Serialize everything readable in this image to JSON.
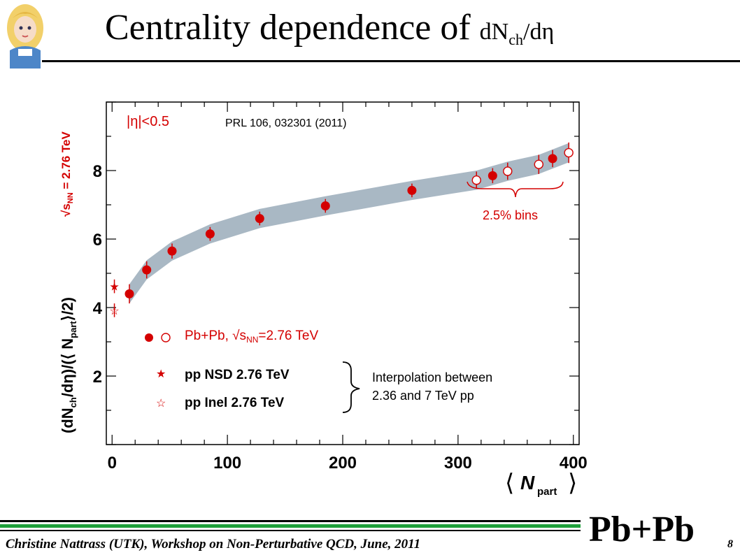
{
  "slide": {
    "title_main": "Centrality dependence of ",
    "title_math": "dN",
    "title_math_sub": "ch",
    "title_math_tail": "/dη",
    "footer": "Christine Nattrass (UTK), Workshop on Non-Perturbative QCD, June, 2011",
    "corner_label": "Pb+Pb",
    "page_number": "8"
  },
  "chart_data": {
    "type": "scatter",
    "xlim": [
      -5,
      405
    ],
    "ylim": [
      0,
      10
    ],
    "x_ticks": [
      "0",
      "100",
      "200",
      "300",
      "400"
    ],
    "y_ticks": [
      "2",
      "4",
      "6",
      "8"
    ],
    "xlabel_main": "N",
    "xlabel_sub": "part",
    "ylabel": "(dN",
    "ylabel_sub1": "ch",
    "ylabel_mid": "/dη)/(⟨ N",
    "ylabel_sub2": "part",
    "ylabel_tail": "⟩/2)",
    "energy_label": "√s",
    "energy_sub": "NN",
    "energy_tail": " = 2.76 TeV",
    "eta_cut": "|η|<0.5",
    "reference": "PRL 106, 032301 (2011)",
    "bins_label": "2.5% bins",
    "colors": {
      "data": "#d40000",
      "band": "#a9b8c4",
      "axis": "#000000"
    },
    "series": [
      {
        "name": "Pb+Pb, √sNN=2.76 TeV",
        "marker": "filled-circle",
        "x": [
          15,
          30,
          52,
          85,
          128,
          185,
          260,
          330,
          382
        ],
        "y": [
          4.4,
          5.1,
          5.65,
          6.15,
          6.6,
          6.97,
          7.42,
          7.85,
          8.35
        ],
        "err": [
          0.28,
          0.25,
          0.22,
          0.2,
          0.2,
          0.2,
          0.2,
          0.22,
          0.25
        ]
      },
      {
        "name": "Pb+Pb, √sNN=2.76 TeV (2.5% bins)",
        "marker": "open-circle",
        "x": [
          316,
          343,
          370,
          396
        ],
        "y": [
          7.72,
          7.98,
          8.18,
          8.52
        ],
        "err": [
          0.25,
          0.25,
          0.28,
          0.3
        ]
      },
      {
        "name": "pp NSD 2.76 TeV",
        "marker": "filled-star",
        "x": [
          2
        ],
        "y": [
          4.62
        ],
        "err": [
          0.2
        ]
      },
      {
        "name": "pp Inel 2.76 TeV",
        "marker": "open-star",
        "x": [
          2
        ],
        "y": [
          3.92
        ],
        "err": [
          0.2
        ]
      }
    ],
    "band": {
      "x": [
        15,
        30,
        52,
        85,
        128,
        185,
        260,
        316,
        343,
        370,
        396
      ],
      "y": [
        4.4,
        5.1,
        5.65,
        6.15,
        6.6,
        6.97,
        7.42,
        7.72,
        7.98,
        8.18,
        8.52
      ],
      "half_width": 0.28
    },
    "legend": {
      "pbpb": "Pb+Pb, √s",
      "pbpb_sub": "NN",
      "pbpb_tail": "=2.76 TeV",
      "pp_nsd": "pp NSD 2.76 TeV",
      "pp_inel": "pp Inel 2.76 TeV",
      "interp_line1": "Interpolation between",
      "interp_line2": "2.36 and 7 TeV pp"
    }
  }
}
